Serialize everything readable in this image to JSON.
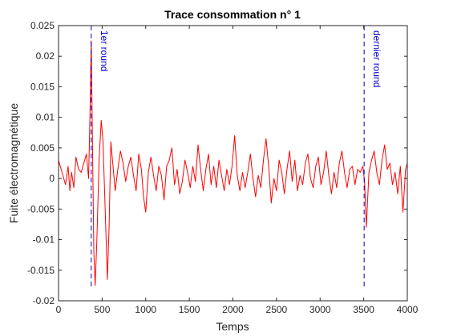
{
  "chart_data": {
    "type": "line",
    "title": "Trace consommation n° 1",
    "xlabel": "Temps",
    "ylabel": "Fuite électromagnétique",
    "xlim": [
      0,
      4000
    ],
    "ylim": [
      -0.02,
      0.025
    ],
    "x_ticks": [
      0,
      500,
      1000,
      1500,
      2000,
      2500,
      3000,
      3500,
      4000
    ],
    "x_tick_labels": [
      "0",
      "500",
      "1000",
      "1500",
      "2000",
      "2500",
      "3000",
      "3500",
      "4000"
    ],
    "y_ticks": [
      -0.02,
      -0.015,
      -0.01,
      -0.005,
      0,
      0.005,
      0.01,
      0.015,
      0.02,
      0.025
    ],
    "y_tick_labels": [
      "-0.02",
      "-0.015",
      "-0.01",
      "-0.005",
      "0",
      "0.005",
      "0.01",
      "0.015",
      "0.02",
      "0.025"
    ],
    "grid": false,
    "box": true,
    "series": [
      {
        "color": "#ff0000",
        "x": [
          0,
          40,
          80,
          110,
          130,
          150,
          175,
          200,
          230,
          260,
          290,
          320,
          345,
          360,
          375,
          390,
          405,
          420,
          440,
          465,
          490,
          510,
          535,
          560,
          580,
          600,
          625,
          650,
          680,
          710,
          740,
          770,
          800,
          830,
          860,
          890,
          920,
          950,
          975,
          1000,
          1030,
          1060,
          1090,
          1120,
          1150,
          1180,
          1210,
          1240,
          1270,
          1300,
          1330,
          1360,
          1390,
          1420,
          1450,
          1480,
          1510,
          1540,
          1570,
          1600,
          1630,
          1660,
          1690,
          1720,
          1750,
          1780,
          1810,
          1840,
          1870,
          1900,
          1930,
          1960,
          1990,
          2020,
          2050,
          2080,
          2110,
          2140,
          2170,
          2200,
          2230,
          2260,
          2290,
          2320,
          2350,
          2380,
          2410,
          2440,
          2470,
          2500,
          2530,
          2560,
          2590,
          2620,
          2650,
          2680,
          2710,
          2740,
          2770,
          2800,
          2830,
          2860,
          2890,
          2920,
          2950,
          2980,
          3010,
          3040,
          3070,
          3100,
          3130,
          3160,
          3190,
          3220,
          3250,
          3280,
          3310,
          3340,
          3370,
          3400,
          3430,
          3460,
          3490,
          3510,
          3530,
          3560,
          3590,
          3620,
          3650,
          3680,
          3710,
          3740,
          3770,
          3800,
          3830,
          3860,
          3890,
          3920,
          3950,
          3980,
          4000
        ],
        "y": [
          0.003,
          0.001,
          -0.001,
          0.002,
          -0.002,
          0.001,
          -0.0015,
          0.0035,
          0.0015,
          0.001,
          0.0025,
          0.004,
          0.0,
          0.01,
          0.0225,
          0.005,
          -0.012,
          -0.0175,
          -0.01,
          0.003,
          0.0095,
          0.006,
          -0.005,
          -0.0165,
          -0.008,
          0.006,
          0.002,
          -0.002,
          0.0015,
          0.0045,
          0.0025,
          -0.0005,
          0.002,
          0.0035,
          0.0005,
          -0.002,
          0.004,
          0.0015,
          -0.003,
          -0.0055,
          0.001,
          0.0035,
          0.0005,
          -0.002,
          0.002,
          0.0005,
          -0.0035,
          0.002,
          0.003,
          0.005,
          -0.001,
          0.0015,
          -0.0025,
          -0.0005,
          0.003,
          0.001,
          -0.0015,
          0.002,
          -0.0005,
          0.0055,
          0.0015,
          -0.002,
          0.0015,
          0.004,
          -0.001,
          0.002,
          -0.0015,
          0.003,
          0.0005,
          -0.002,
          0.0015,
          -0.001,
          0.002,
          0.007,
          0.0005,
          -0.002,
          0.001,
          -0.0015,
          0.001,
          0.004,
          0.0,
          -0.003,
          0.0005,
          -0.0015,
          0.003,
          0.0065,
          0.002,
          -0.004,
          0.0,
          -0.002,
          0.003,
          0.001,
          -0.0025,
          0.0015,
          0.0045,
          -0.0005,
          0.003,
          -0.002,
          0.0005,
          -0.001,
          0.0025,
          0.004,
          0.0,
          -0.0015,
          0.002,
          0.0035,
          -0.001,
          0.001,
          0.0045,
          0.0005,
          -0.0025,
          0.001,
          -0.0015,
          0.0025,
          0.0045,
          0.001,
          -0.0015,
          0.0015,
          0.002,
          -0.001,
          0.0015,
          0.001,
          0.002,
          -0.0005,
          -0.008,
          0.001,
          0.003,
          0.0045,
          0.001,
          -0.001,
          0.003,
          0.0055,
          0.0015,
          0.0025,
          -0.001,
          0.001,
          -0.0025,
          0.002,
          -0.0055,
          0.0015,
          0.0025
        ]
      }
    ],
    "vlines": [
      {
        "x": 375,
        "color": "#0000cc",
        "label": "1er round"
      },
      {
        "x": 3505,
        "color": "#0000cc",
        "label": "dernier round"
      }
    ]
  }
}
